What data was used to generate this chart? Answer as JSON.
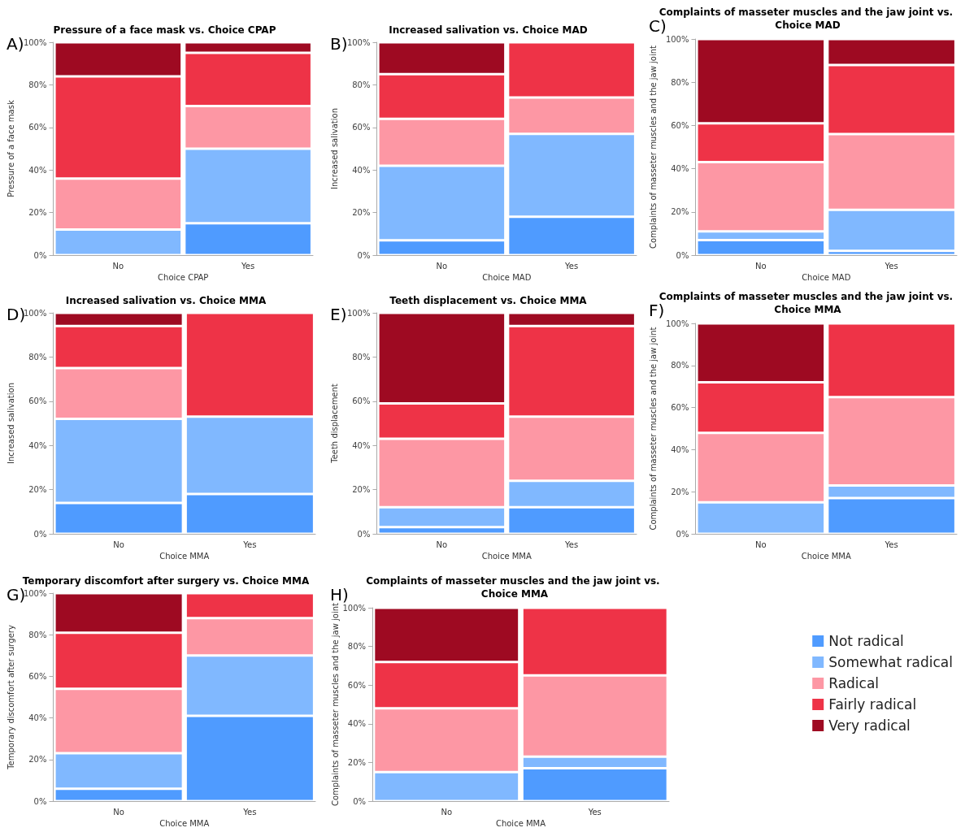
{
  "chart_data": [
    {
      "type": "bar",
      "stacked": true,
      "title": "Pressure of a face mask vs. Choice CPAP",
      "xlabel": "Choice CPAP",
      "ylabel": "Pressure of a face mask",
      "annotations": [
        "A)"
      ],
      "categories": [
        "No",
        "Yes"
      ],
      "ylim": [
        0,
        100
      ],
      "yticks": [
        {
          "value": 0,
          "label": "0%"
        },
        {
          "value": 20,
          "label": "20%"
        },
        {
          "value": 40,
          "label": "40%"
        },
        {
          "value": 60,
          "label": "60%"
        },
        {
          "value": 80,
          "label": "80%"
        },
        {
          "value": 100,
          "label": "100%"
        }
      ],
      "grid": false,
      "legend": false,
      "series": [
        {
          "color": "#4f9bff",
          "values": [
            null,
            15
          ]
        },
        {
          "color": "#80b8ff",
          "values": [
            12,
            35
          ]
        },
        {
          "color": "#fd97a4",
          "values": [
            24,
            20
          ]
        },
        {
          "color": "#ee3347",
          "values": [
            48,
            25
          ]
        },
        {
          "color": "#9e0a22",
          "values": [
            16,
            5
          ]
        }
      ]
    },
    {
      "type": "bar",
      "stacked": true,
      "title": "Increased salivation vs. Choice MAD",
      "xlabel": "Choice MAD",
      "ylabel": "Increased salivation",
      "annotations": [
        "B)"
      ],
      "categories": [
        "No",
        "Yes"
      ],
      "ylim": [
        0,
        100
      ],
      "yticks": [
        {
          "value": 0,
          "label": "0%"
        },
        {
          "value": 20,
          "label": "20%"
        },
        {
          "value": 40,
          "label": "40%"
        },
        {
          "value": 60,
          "label": "60%"
        },
        {
          "value": 80,
          "label": "80%"
        },
        {
          "value": 100,
          "label": "100%"
        }
      ],
      "grid": false,
      "legend": false,
      "series": [
        {
          "color": "#4f9bff",
          "values": [
            7,
            18
          ]
        },
        {
          "color": "#80b8ff",
          "values": [
            35,
            39
          ]
        },
        {
          "color": "#fd97a4",
          "values": [
            22,
            17
          ]
        },
        {
          "color": "#ee3347",
          "values": [
            21,
            26
          ]
        },
        {
          "color": "#9e0a22",
          "values": [
            15,
            null
          ]
        }
      ]
    },
    {
      "type": "bar",
      "stacked": true,
      "title": "Complaints of masseter muscles and the jaw joint vs. Choice MAD",
      "xlabel": "Choice MAD",
      "ylabel": "Complaints of masseter muscles and the jaw joint",
      "annotations": [
        "C)"
      ],
      "categories": [
        "No",
        "Yes"
      ],
      "ylim": [
        0,
        100
      ],
      "yticks": [
        {
          "value": 0,
          "label": "0%"
        },
        {
          "value": 20,
          "label": "20%"
        },
        {
          "value": 40,
          "label": "40%"
        },
        {
          "value": 60,
          "label": "60%"
        },
        {
          "value": 80,
          "label": "80%"
        },
        {
          "value": 100,
          "label": "100%"
        }
      ],
      "grid": false,
      "legend": false,
      "series": [
        {
          "color": "#4f9bff",
          "values": [
            7,
            2
          ]
        },
        {
          "color": "#80b8ff",
          "values": [
            4,
            19
          ]
        },
        {
          "color": "#fd97a4",
          "values": [
            32,
            35
          ]
        },
        {
          "color": "#ee3347",
          "values": [
            18,
            32
          ]
        },
        {
          "color": "#9e0a22",
          "values": [
            39,
            12
          ]
        }
      ]
    },
    {
      "type": "bar",
      "stacked": true,
      "title": "Increased salivation vs. Choice MMA",
      "xlabel": "Choice MMA",
      "ylabel": "Increased salivation",
      "annotations": [
        "D)"
      ],
      "categories": [
        "No",
        "Yes"
      ],
      "ylim": [
        0,
        100
      ],
      "yticks": [
        {
          "value": 0,
          "label": "0%"
        },
        {
          "value": 20,
          "label": "20%"
        },
        {
          "value": 40,
          "label": "40%"
        },
        {
          "value": 60,
          "label": "60%"
        },
        {
          "value": 80,
          "label": "80%"
        },
        {
          "value": 100,
          "label": "100%"
        }
      ],
      "grid": false,
      "legend": false,
      "series": [
        {
          "color": "#4f9bff",
          "values": [
            14,
            18
          ]
        },
        {
          "color": "#80b8ff",
          "values": [
            38,
            35
          ]
        },
        {
          "color": "#fd97a4",
          "values": [
            23,
            null
          ]
        },
        {
          "color": "#ee3347",
          "values": [
            19,
            47
          ]
        },
        {
          "color": "#9e0a22",
          "values": [
            6,
            null
          ]
        }
      ]
    },
    {
      "type": "bar",
      "stacked": true,
      "title": "Teeth displacement vs. Choice MMA",
      "xlabel": "Choice MMA",
      "ylabel": "Teeth displacement",
      "annotations": [
        "E)"
      ],
      "categories": [
        "No",
        "Yes"
      ],
      "ylim": [
        0,
        100
      ],
      "yticks": [
        {
          "value": 0,
          "label": "0%"
        },
        {
          "value": 20,
          "label": "20%"
        },
        {
          "value": 40,
          "label": "40%"
        },
        {
          "value": 60,
          "label": "60%"
        },
        {
          "value": 80,
          "label": "80%"
        },
        {
          "value": 100,
          "label": "100%"
        }
      ],
      "grid": false,
      "legend": false,
      "series": [
        {
          "color": "#4f9bff",
          "values": [
            3,
            12
          ]
        },
        {
          "color": "#80b8ff",
          "values": [
            9,
            12
          ]
        },
        {
          "color": "#fd97a4",
          "values": [
            31,
            29
          ]
        },
        {
          "color": "#ee3347",
          "values": [
            16,
            41
          ]
        },
        {
          "color": "#9e0a22",
          "values": [
            41,
            6
          ]
        }
      ]
    },
    {
      "type": "bar",
      "stacked": true,
      "title": "Complaints of masseter muscles and the jaw joint vs. Choice MMA",
      "xlabel": "Choice MMA",
      "ylabel": "Complaints of masseter muscles and the jaw joint",
      "annotations": [
        "F)"
      ],
      "categories": [
        "No",
        "Yes"
      ],
      "ylim": [
        0,
        100
      ],
      "yticks": [
        {
          "value": 0,
          "label": "0%"
        },
        {
          "value": 20,
          "label": "20%"
        },
        {
          "value": 40,
          "label": "40%"
        },
        {
          "value": 60,
          "label": "60%"
        },
        {
          "value": 80,
          "label": "80%"
        },
        {
          "value": 100,
          "label": "100%"
        }
      ],
      "grid": false,
      "legend": false,
      "series": [
        {
          "color": "#4f9bff",
          "values": [
            null,
            17
          ]
        },
        {
          "color": "#80b8ff",
          "values": [
            15,
            6
          ]
        },
        {
          "color": "#fd97a4",
          "values": [
            33,
            42
          ]
        },
        {
          "color": "#ee3347",
          "values": [
            24,
            35
          ]
        },
        {
          "color": "#9e0a22",
          "values": [
            28,
            null
          ]
        }
      ]
    },
    {
      "type": "bar",
      "stacked": true,
      "title": "Temporary discomfort after surgery vs. Choice MMA",
      "xlabel": "Choice MMA",
      "ylabel": "Temporary discomfort after surgery",
      "annotations": [
        "G)"
      ],
      "categories": [
        "No",
        "Yes"
      ],
      "ylim": [
        0,
        100
      ],
      "yticks": [
        {
          "value": 0,
          "label": "0%"
        },
        {
          "value": 20,
          "label": "20%"
        },
        {
          "value": 40,
          "label": "40%"
        },
        {
          "value": 60,
          "label": "60%"
        },
        {
          "value": 80,
          "label": "80%"
        },
        {
          "value": 100,
          "label": "100%"
        }
      ],
      "grid": false,
      "legend": false,
      "series": [
        {
          "color": "#4f9bff",
          "values": [
            6,
            41
          ]
        },
        {
          "color": "#80b8ff",
          "values": [
            17,
            29
          ]
        },
        {
          "color": "#fd97a4",
          "values": [
            31,
            18
          ]
        },
        {
          "color": "#ee3347",
          "values": [
            27,
            12
          ]
        },
        {
          "color": "#9e0a22",
          "values": [
            19,
            null
          ]
        }
      ]
    },
    {
      "type": "bar",
      "stacked": true,
      "title": "Complaints of masseter muscles and the jaw joint vs. Choice MMA",
      "xlabel": "Choice MMA",
      "ylabel": "Complaints of masseter muscles and the jaw joint",
      "annotations": [
        "H)"
      ],
      "categories": [
        "No",
        "Yes"
      ],
      "ylim": [
        0,
        100
      ],
      "yticks": [
        {
          "value": 0,
          "label": "0%"
        },
        {
          "value": 20,
          "label": "20%"
        },
        {
          "value": 40,
          "label": "40%"
        },
        {
          "value": 60,
          "label": "60%"
        },
        {
          "value": 80,
          "label": "80%"
        },
        {
          "value": 100,
          "label": "100%"
        }
      ],
      "grid": false,
      "legend": "right",
      "series": [
        {
          "name": "Not radical",
          "color": "#4f9bff",
          "values": [
            null,
            17
          ]
        },
        {
          "name": "Somewhat radical",
          "color": "#80b8ff",
          "values": [
            15,
            6
          ]
        },
        {
          "name": "Radical",
          "color": "#fd97a4",
          "values": [
            33,
            42
          ]
        },
        {
          "name": "Fairly radical",
          "color": "#ee3347",
          "values": [
            24,
            35
          ]
        },
        {
          "name": "Very radical",
          "color": "#9e0a22",
          "values": [
            28,
            null
          ]
        }
      ]
    }
  ]
}
